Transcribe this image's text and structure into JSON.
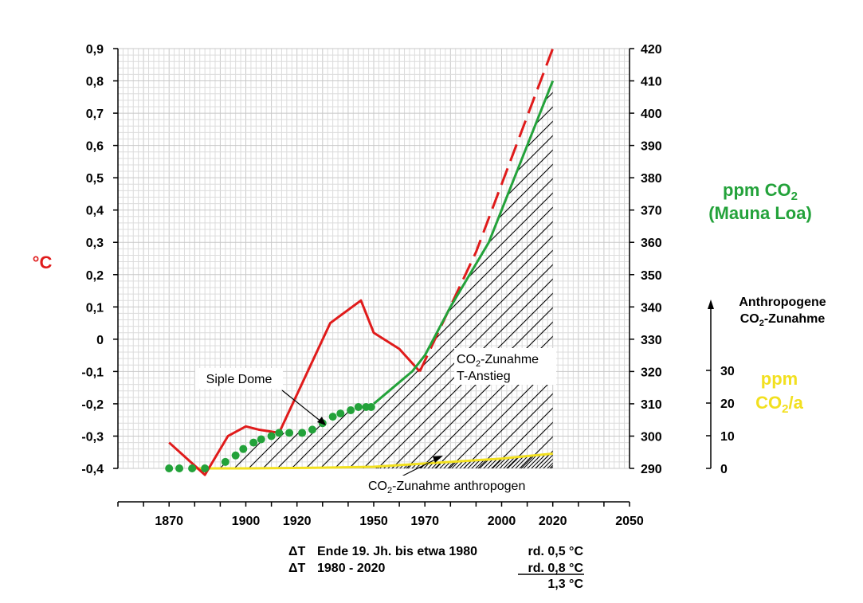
{
  "chart_data": {
    "type": "line",
    "x_axis": {
      "range": [
        1850,
        2050
      ],
      "tick_labels": [
        "1870",
        "1900",
        "1920",
        "1950",
        "1970",
        "2000",
        "2020",
        "2050"
      ],
      "minor_ticks_every": 10
    },
    "y_left": {
      "label": "°C",
      "range": [
        -0.4,
        0.9
      ],
      "tick_labels": [
        "0,9",
        "0,8",
        "0,7",
        "0,6",
        "0,5",
        "0,4",
        "0,3",
        "0,2",
        "0,1",
        "0",
        "-0,1",
        "-0,2",
        "-0,3",
        "-0,4"
      ],
      "color": "#e01b1b"
    },
    "y_right": {
      "label_line1": "ppm CO",
      "label_line1_sub": "2",
      "label_line2": "(Mauna Loa)",
      "range": [
        290,
        420
      ],
      "tick_labels": [
        "420",
        "410",
        "400",
        "390",
        "380",
        "370",
        "360",
        "350",
        "340",
        "330",
        "320",
        "310",
        "300",
        "290"
      ],
      "color": "#23a23a"
    },
    "y_right_inner": {
      "title_line1": "Anthropogene",
      "title_line2_pre": "CO",
      "title_line2_sub": "2",
      "title_line2_post": "-Zunahme",
      "range": [
        0,
        30
      ],
      "tick_labels": [
        "30",
        "20",
        "10",
        "0"
      ],
      "unit_line1": "ppm",
      "unit_line2_pre": "CO",
      "unit_line2_sub": "2",
      "unit_line2_post": "/a",
      "color": "#f2e01f"
    },
    "series": [
      {
        "name": "°C",
        "axis": "left",
        "color": "#e01b1b",
        "x": [
          1870,
          1884,
          1893,
          1900,
          1905,
          1913,
          1933,
          1945,
          1950,
          1960,
          1968
        ],
        "y": [
          -0.32,
          -0.42,
          -0.3,
          -0.27,
          -0.28,
          -0.29,
          0.05,
          0.12,
          0.02,
          -0.03,
          -0.1
        ]
      },
      {
        "name": "°C projected",
        "axis": "left",
        "color": "#e01b1b",
        "dashed": true,
        "x": [
          1968,
          1990,
          2020
        ],
        "y": [
          -0.1,
          0.27,
          0.9
        ]
      },
      {
        "name": "ppm CO2 (Mauna Loa)",
        "axis": "right",
        "color": "#23a23a",
        "x": [
          1950,
          1965,
          1970,
          1980,
          1995,
          2010,
          2020
        ],
        "y": [
          310,
          320,
          325,
          340,
          360,
          390,
          410
        ]
      },
      {
        "name": "Siple Dome",
        "axis": "right",
        "color": "#23a23a",
        "marker": "dot",
        "x": [
          1870,
          1874,
          1879,
          1884,
          1892,
          1896,
          1899,
          1903,
          1906,
          1910,
          1913,
          1917,
          1922,
          1926,
          1930,
          1934,
          1937,
          1941,
          1944,
          1947,
          1949
        ],
        "y": [
          290,
          290,
          290,
          290,
          292,
          294,
          296,
          298,
          299,
          300,
          301,
          301,
          301,
          302,
          304,
          306,
          307,
          308,
          309,
          309,
          309
        ]
      },
      {
        "name": "CO2-Zunahme anthropogen",
        "axis": "right_inner",
        "color": "#f2e01f",
        "x": [
          1880,
          1900,
          1930,
          1950,
          1970,
          2000,
          2020
        ],
        "y": [
          0,
          0,
          0.2,
          0.5,
          1.5,
          3.0,
          4.5
        ]
      }
    ],
    "annotations": {
      "siple_dome": "Siple Dome",
      "hatch_label_1_pre": "CO",
      "hatch_label_1_sub": "2",
      "hatch_label_1_post": "-Zunahme",
      "hatch_label_2": "T-Anstieg",
      "anthro_label_pre": "CO",
      "anthro_label_sub": "2",
      "anthro_label_post": "-Zunahme anthropogen"
    },
    "footer": {
      "row1_symbol": "ΔT",
      "row1_text": "Ende 19. Jh. bis etwa 1980",
      "row1_value": "rd. 0,5 °C",
      "row2_symbol": "ΔT",
      "row2_text": "1980 - 2020",
      "row2_value": "rd. 0,8 °C",
      "total": "1,3 °C"
    },
    "grid": true
  },
  "colors": {
    "red": "#e01b1b",
    "green": "#23a23a",
    "yellow": "#f2e01f",
    "grid_minor": "#dcdcdc",
    "grid_major": "#c8c8c8"
  }
}
